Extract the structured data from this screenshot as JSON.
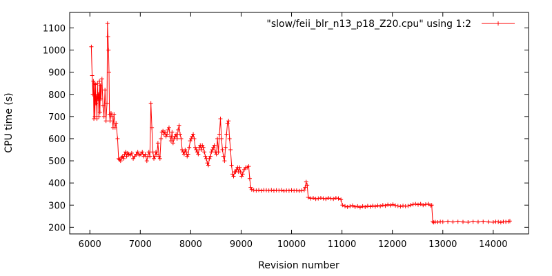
{
  "chart_data": {
    "type": "line",
    "title": "",
    "xlabel": "Revision number",
    "ylabel": "CPU time (s)",
    "xlim": [
      5600,
      14700
    ],
    "ylim": [
      170,
      1170
    ],
    "xticks": [
      6000,
      7000,
      8000,
      9000,
      10000,
      11000,
      12000,
      13000,
      14000
    ],
    "yticks": [
      200,
      300,
      400,
      500,
      600,
      700,
      800,
      900,
      1000,
      1100
    ],
    "grid": false,
    "legend_position": "top-right",
    "series_color": "#ff0000",
    "marker": "plus",
    "series": [
      {
        "name": "\"slow/feii_blr_n13_p18_Z20.cpu\" using 1:2",
        "points": [
          [
            6030,
            1015
          ],
          [
            6045,
            885
          ],
          [
            6060,
            800
          ],
          [
            6070,
            860
          ],
          [
            6080,
            690
          ],
          [
            6090,
            850
          ],
          [
            6100,
            700
          ],
          [
            6110,
            845
          ],
          [
            6120,
            760
          ],
          [
            6130,
            790
          ],
          [
            6140,
            690
          ],
          [
            6150,
            850
          ],
          [
            6160,
            780
          ],
          [
            6170,
            800
          ],
          [
            6180,
            700
          ],
          [
            6190,
            860
          ],
          [
            6200,
            720
          ],
          [
            6210,
            840
          ],
          [
            6220,
            780
          ],
          [
            6240,
            870
          ],
          [
            6260,
            750
          ],
          [
            6280,
            700
          ],
          [
            6300,
            820
          ],
          [
            6320,
            680
          ],
          [
            6340,
            760
          ],
          [
            6350,
            1120
          ],
          [
            6360,
            1060
          ],
          [
            6370,
            1000
          ],
          [
            6380,
            900
          ],
          [
            6390,
            710
          ],
          [
            6400,
            680
          ],
          [
            6420,
            715
          ],
          [
            6440,
            700
          ],
          [
            6460,
            650
          ],
          [
            6480,
            710
          ],
          [
            6500,
            650
          ],
          [
            6520,
            670
          ],
          [
            6550,
            600
          ],
          [
            6570,
            510
          ],
          [
            6590,
            505
          ],
          [
            6610,
            500
          ],
          [
            6630,
            515
          ],
          [
            6650,
            520
          ],
          [
            6670,
            510
          ],
          [
            6690,
            530
          ],
          [
            6710,
            540
          ],
          [
            6730,
            520
          ],
          [
            6750,
            535
          ],
          [
            6770,
            530
          ],
          [
            6800,
            525
          ],
          [
            6830,
            535
          ],
          [
            6860,
            510
          ],
          [
            6890,
            520
          ],
          [
            6920,
            530
          ],
          [
            6950,
            540
          ],
          [
            6980,
            525
          ],
          [
            7010,
            530
          ],
          [
            7040,
            540
          ],
          [
            7070,
            520
          ],
          [
            7100,
            530
          ],
          [
            7130,
            500
          ],
          [
            7150,
            520
          ],
          [
            7170,
            540
          ],
          [
            7190,
            520
          ],
          [
            7210,
            760
          ],
          [
            7230,
            650
          ],
          [
            7250,
            540
          ],
          [
            7270,
            510
          ],
          [
            7290,
            520
          ],
          [
            7310,
            540
          ],
          [
            7330,
            530
          ],
          [
            7350,
            580
          ],
          [
            7370,
            520
          ],
          [
            7390,
            510
          ],
          [
            7410,
            600
          ],
          [
            7430,
            630
          ],
          [
            7450,
            635
          ],
          [
            7470,
            620
          ],
          [
            7490,
            630
          ],
          [
            7510,
            610
          ],
          [
            7530,
            620
          ],
          [
            7550,
            640
          ],
          [
            7570,
            650
          ],
          [
            7590,
            610
          ],
          [
            7610,
            590
          ],
          [
            7630,
            630
          ],
          [
            7650,
            580
          ],
          [
            7670,
            600
          ],
          [
            7690,
            610
          ],
          [
            7710,
            620
          ],
          [
            7730,
            600
          ],
          [
            7750,
            640
          ],
          [
            7770,
            660
          ],
          [
            7790,
            620
          ],
          [
            7810,
            600
          ],
          [
            7830,
            550
          ],
          [
            7850,
            540
          ],
          [
            7870,
            530
          ],
          [
            7890,
            550
          ],
          [
            7910,
            540
          ],
          [
            7930,
            520
          ],
          [
            7950,
            530
          ],
          [
            7970,
            560
          ],
          [
            7990,
            590
          ],
          [
            8010,
            600
          ],
          [
            8030,
            610
          ],
          [
            8050,
            620
          ],
          [
            8070,
            600
          ],
          [
            8090,
            560
          ],
          [
            8110,
            550
          ],
          [
            8130,
            540
          ],
          [
            8150,
            530
          ],
          [
            8170,
            560
          ],
          [
            8190,
            570
          ],
          [
            8210,
            550
          ],
          [
            8230,
            570
          ],
          [
            8250,
            560
          ],
          [
            8270,
            540
          ],
          [
            8290,
            520
          ],
          [
            8310,
            510
          ],
          [
            8330,
            490
          ],
          [
            8350,
            480
          ],
          [
            8370,
            510
          ],
          [
            8390,
            520
          ],
          [
            8410,
            540
          ],
          [
            8430,
            550
          ],
          [
            8450,
            560
          ],
          [
            8470,
            570
          ],
          [
            8490,
            540
          ],
          [
            8510,
            530
          ],
          [
            8530,
            600
          ],
          [
            8550,
            540
          ],
          [
            8570,
            620
          ],
          [
            8590,
            690
          ],
          [
            8610,
            600
          ],
          [
            8630,
            550
          ],
          [
            8650,
            520
          ],
          [
            8670,
            500
          ],
          [
            8690,
            560
          ],
          [
            8710,
            620
          ],
          [
            8730,
            670
          ],
          [
            8750,
            680
          ],
          [
            8770,
            600
          ],
          [
            8790,
            550
          ],
          [
            8810,
            480
          ],
          [
            8830,
            440
          ],
          [
            8850,
            430
          ],
          [
            8870,
            450
          ],
          [
            8890,
            450
          ],
          [
            8910,
            460
          ],
          [
            8930,
            470
          ],
          [
            8950,
            450
          ],
          [
            8970,
            470
          ],
          [
            8990,
            450
          ],
          [
            9010,
            430
          ],
          [
            9030,
            440
          ],
          [
            9060,
            460
          ],
          [
            9090,
            470
          ],
          [
            9120,
            470
          ],
          [
            9150,
            475
          ],
          [
            9170,
            420
          ],
          [
            9190,
            380
          ],
          [
            9210,
            370
          ],
          [
            9250,
            368
          ],
          [
            9300,
            366
          ],
          [
            9350,
            368
          ],
          [
            9400,
            365
          ],
          [
            9450,
            368
          ],
          [
            9500,
            367
          ],
          [
            9550,
            366
          ],
          [
            9600,
            368
          ],
          [
            9650,
            365
          ],
          [
            9700,
            367
          ],
          [
            9750,
            366
          ],
          [
            9800,
            368
          ],
          [
            9850,
            364
          ],
          [
            9900,
            366
          ],
          [
            9950,
            365
          ],
          [
            10000,
            367
          ],
          [
            10050,
            365
          ],
          [
            10100,
            366
          ],
          [
            10150,
            364
          ],
          [
            10200,
            366
          ],
          [
            10250,
            368
          ],
          [
            10270,
            380
          ],
          [
            10290,
            405
          ],
          [
            10310,
            390
          ],
          [
            10330,
            335
          ],
          [
            10380,
            330
          ],
          [
            10430,
            332
          ],
          [
            10480,
            328
          ],
          [
            10530,
            330
          ],
          [
            10580,
            332
          ],
          [
            10630,
            330
          ],
          [
            10680,
            328
          ],
          [
            10730,
            332
          ],
          [
            10780,
            330
          ],
          [
            10830,
            328
          ],
          [
            10880,
            332
          ],
          [
            10930,
            330
          ],
          [
            10980,
            325
          ],
          [
            11010,
            300
          ],
          [
            11060,
            295
          ],
          [
            11110,
            292
          ],
          [
            11160,
            295
          ],
          [
            11210,
            298
          ],
          [
            11260,
            292
          ],
          [
            11310,
            295
          ],
          [
            11360,
            290
          ],
          [
            11410,
            295
          ],
          [
            11460,
            292
          ],
          [
            11510,
            296
          ],
          [
            11560,
            293
          ],
          [
            11610,
            297
          ],
          [
            11660,
            294
          ],
          [
            11710,
            298
          ],
          [
            11760,
            295
          ],
          [
            11810,
            300
          ],
          [
            11860,
            297
          ],
          [
            11910,
            302
          ],
          [
            11960,
            299
          ],
          [
            12010,
            303
          ],
          [
            12060,
            298
          ],
          [
            12110,
            296
          ],
          [
            12160,
            294
          ],
          [
            12210,
            297
          ],
          [
            12260,
            295
          ],
          [
            12310,
            296
          ],
          [
            12360,
            300
          ],
          [
            12410,
            303
          ],
          [
            12460,
            305
          ],
          [
            12510,
            302
          ],
          [
            12560,
            305
          ],
          [
            12610,
            300
          ],
          [
            12660,
            303
          ],
          [
            12710,
            305
          ],
          [
            12760,
            298
          ],
          [
            12780,
            300
          ],
          [
            12800,
            225
          ],
          [
            12820,
            222
          ],
          [
            12850,
            224
          ],
          [
            12900,
            223
          ],
          [
            12950,
            225
          ],
          [
            13000,
            224
          ],
          [
            13100,
            225
          ],
          [
            13200,
            224
          ],
          [
            13300,
            225
          ],
          [
            13400,
            224
          ],
          [
            13500,
            223
          ],
          [
            13600,
            225
          ],
          [
            13700,
            224
          ],
          [
            13800,
            225
          ],
          [
            13900,
            224
          ],
          [
            14000,
            223
          ],
          [
            14050,
            225
          ],
          [
            14100,
            224
          ],
          [
            14150,
            222
          ],
          [
            14200,
            225
          ],
          [
            14250,
            224
          ],
          [
            14300,
            226
          ],
          [
            14330,
            228
          ]
        ]
      }
    ]
  }
}
